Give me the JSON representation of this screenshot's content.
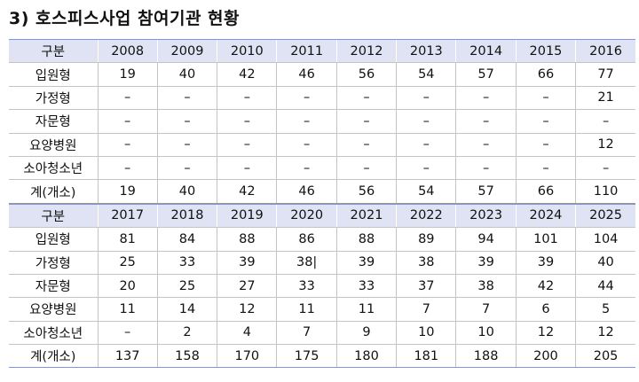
{
  "title": "3) 호스피스사업 참여기관 현황",
  "header_label": "구분",
  "sections": [
    {
      "years": [
        "2008",
        "2009",
        "2010",
        "2011",
        "2012",
        "2013",
        "2014",
        "2015",
        "2016"
      ],
      "rows": [
        {
          "label": "입원형",
          "values": [
            "19",
            "40",
            "42",
            "46",
            "56",
            "54",
            "57",
            "66",
            "77"
          ]
        },
        {
          "label": "가정형",
          "values": [
            "–",
            "–",
            "–",
            "–",
            "–",
            "–",
            "–",
            "–",
            "21"
          ]
        },
        {
          "label": "자문형",
          "values": [
            "–",
            "–",
            "–",
            "–",
            "–",
            "–",
            "–",
            "–",
            "–"
          ]
        },
        {
          "label": "요양병원",
          "values": [
            "–",
            "–",
            "–",
            "–",
            "–",
            "–",
            "–",
            "–",
            "12"
          ]
        },
        {
          "label": "소아청소년",
          "values": [
            "–",
            "–",
            "–",
            "–",
            "–",
            "–",
            "–",
            "–",
            "–"
          ]
        },
        {
          "label": "계(개소)",
          "values": [
            "19",
            "40",
            "42",
            "46",
            "56",
            "54",
            "57",
            "66",
            "110"
          ]
        }
      ]
    },
    {
      "years": [
        "2017",
        "2018",
        "2019",
        "2020",
        "2021",
        "2022",
        "2023",
        "2024",
        "2025"
      ],
      "rows": [
        {
          "label": "입원형",
          "values": [
            "81",
            "84",
            "88",
            "86",
            "88",
            "89",
            "94",
            "101",
            "104"
          ]
        },
        {
          "label": "가정형",
          "values": [
            "25",
            "33",
            "39",
            "38|",
            "39",
            "38",
            "39",
            "39",
            "40"
          ]
        },
        {
          "label": "자문형",
          "values": [
            "20",
            "25",
            "27",
            "33",
            "33",
            "37",
            "38",
            "42",
            "44"
          ]
        },
        {
          "label": "요양병원",
          "values": [
            "11",
            "14",
            "12",
            "11",
            "11",
            "7",
            "7",
            "6",
            "5"
          ]
        },
        {
          "label": "소아청소년",
          "values": [
            "–",
            "2",
            "4",
            "7",
            "9",
            "10",
            "10",
            "12",
            "12"
          ]
        },
        {
          "label": "계(개소)",
          "values": [
            "137",
            "158",
            "170",
            "175",
            "180",
            "181",
            "188",
            "200",
            "205"
          ]
        }
      ]
    }
  ]
}
